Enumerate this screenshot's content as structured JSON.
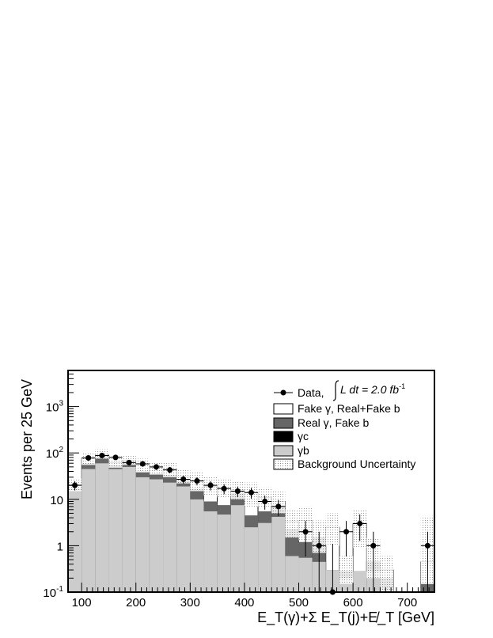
{
  "chart_data": {
    "type": "bar",
    "xlabel": "E_T(γ)+Σ E_T(j)+E̸_T [GeV]",
    "ylabel": "Events per 25 GeV",
    "xlim": [
      75,
      750
    ],
    "ylim": [
      0.1,
      6000
    ],
    "yscale": "log",
    "bin_width": 25,
    "x_ticks": [
      "100",
      "200",
      "300",
      "400",
      "500",
      "600",
      "700"
    ],
    "y_ticks": [
      "10^{-1}",
      "1",
      "10",
      "10^{2}",
      "10^{3}"
    ],
    "legend_position": "top-right",
    "legend": {
      "data": "Data,",
      "lumi_prefix": "L dt = 2.0 fb",
      "lumi_exp": "-1",
      "fake_gamma": "Fake γ, Real+Fake b",
      "real_gamma": "Real γ, Fake b",
      "gamma_c": "γc",
      "gamma_b": "γb",
      "uncertainty": "Background Uncertainty"
    },
    "colors": {
      "gamma_b": "#cccccc",
      "gamma_c": "#000000",
      "real_gamma_fake_b": "#666666",
      "fake_gamma": "#ffffff",
      "uncertainty": "#999999"
    },
    "series": [
      {
        "name": "γb",
        "values": [
          16,
          45,
          60,
          45,
          50,
          30,
          27,
          23,
          19,
          10,
          5.5,
          4.7,
          7.5,
          2.5,
          3.1,
          4.2,
          0.6,
          0.55,
          0.45,
          0.3,
          0.2,
          0.28,
          0.28,
          0.1,
          0.1,
          0.1,
          0.1
        ]
      },
      {
        "name": "γc",
        "values": [
          16,
          45,
          60,
          45,
          50,
          30,
          27,
          23,
          19,
          10,
          5.5,
          4.7,
          7.5,
          2.5,
          3.1,
          4.2,
          0.6,
          0.55,
          0.45,
          0.3,
          0.2,
          0.28,
          0.28,
          0.1,
          0.1,
          0.1,
          0.1
        ]
      },
      {
        "name": "Real γ, Fake b",
        "values": [
          17,
          60,
          85,
          55,
          65,
          40,
          36,
          34,
          26,
          17,
          9,
          7.5,
          13.5,
          4.5,
          5.5,
          7.5,
          2.3,
          1.2,
          1.5,
          0.2,
          0.28,
          0.2,
          0.45,
          0.2,
          0.1,
          0.1,
          0.15
        ]
      },
      {
        "name": "Fake γ, Real+Fake b",
        "values": [
          21,
          75,
          92,
          62,
          70,
          55,
          48,
          45,
          31,
          24,
          19,
          18,
          16,
          14,
          11,
          9,
          3.3,
          3.5,
          1.5,
          2.5,
          0.28,
          3.0,
          0.45,
          0.3,
          0.1,
          0.1,
          0.45
        ]
      }
    ],
    "uncertainty_band": {
      "low": [
        15,
        55,
        75,
        48,
        55,
        38,
        34,
        30,
        22,
        15,
        12,
        11,
        10,
        7,
        7,
        5,
        1.5,
        1.3,
        0.7,
        1.0,
        0.15,
        0.9,
        0.2,
        0.1,
        0.1,
        0.1,
        0.15
      ],
      "high": [
        28,
        100,
        120,
        85,
        90,
        75,
        65,
        62,
        45,
        38,
        30,
        28,
        25,
        23,
        18,
        15,
        6,
        7,
        3.5,
        5,
        0.6,
        6,
        1.5,
        0.6,
        0.1,
        0.1,
        4
      ]
    },
    "data_points": {
      "x": [
        87.5,
        112.5,
        137.5,
        162.5,
        187.5,
        212.5,
        237.5,
        262.5,
        287.5,
        312.5,
        337.5,
        362.5,
        387.5,
        412.5,
        437.5,
        462.5,
        512.5,
        537.5,
        562.5,
        587.5,
        612.5,
        637.5,
        737.5
      ],
      "y": [
        20,
        78,
        88,
        80,
        62,
        58,
        50,
        43,
        27,
        25,
        20,
        17,
        15,
        14,
        9,
        7,
        2,
        1,
        0.1,
        2,
        3,
        1,
        1
      ]
    }
  }
}
